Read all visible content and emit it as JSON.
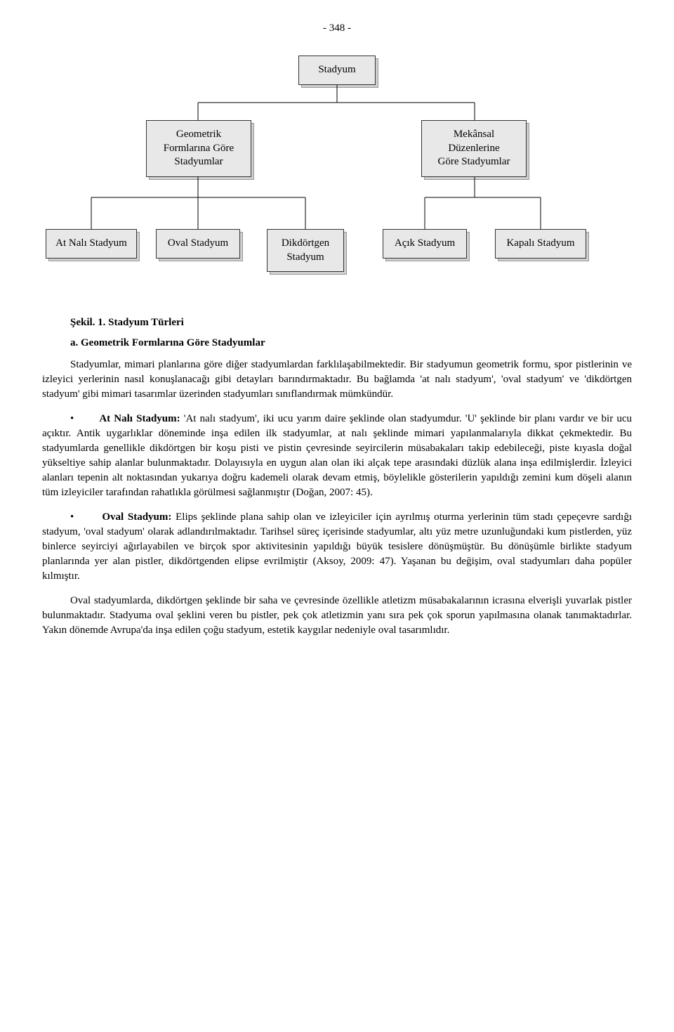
{
  "pageNumber": "- 348 -",
  "chart": {
    "type": "tree",
    "node_bg": "#e8e8e8",
    "node_border": "#333333",
    "shadow_bg": "#d0d0d0",
    "line_color": "#000000",
    "root": "Stadyum",
    "level2": [
      "Geometrik\nFormlarına Göre\nStadyumlar",
      "Mekânsal\nDüzenlerine\nGöre Stadyumlar"
    ],
    "level3_left": [
      "At Nalı Stadyum",
      "Oval Stadyum",
      "Dikdörtgen\nStadyum"
    ],
    "level3_right": [
      "Açık Stadyum",
      "Kapalı Stadyum"
    ]
  },
  "figureCaption": "Şekil. 1. Stadyum Türleri",
  "sectionHead": "a. Geometrik Formlarına Göre Stadyumlar",
  "para1": "Stadyumlar, mimari planlarına göre diğer stadyumlardan farklılaşabilmektedir. Bir stadyumun geometrik formu, spor pistlerinin ve izleyici yerlerinin nasıl konuşlanacağı gibi detayları barındırmaktadır. Bu bağlamda 'at nalı stadyum', 'oval stadyum' ve 'dikdörtgen stadyum' gibi mimari tasarımlar üzerinden stadyumları sınıflandırmak mümkündür.",
  "bullet1Lead": "At Nalı Stadyum:",
  "bullet1Body": " 'At nalı stadyum', iki ucu yarım daire şeklinde olan stadyumdur. 'U' şeklinde bir planı vardır ve bir ucu açıktır. Antik uygarlıklar döneminde inşa edilen ilk stadyumlar, at nalı şeklinde mimari yapılanmalarıyla dikkat çekmektedir. Bu stadyumlarda genellikle dikdörtgen bir koşu pisti ve pistin çevresinde seyircilerin müsabakaları takip edebileceği, piste kıyasla doğal yükseltiye sahip alanlar bulunmaktadır. Dolayısıyla en uygun alan olan iki alçak tepe arasındaki düzlük alana inşa edilmişlerdir. İzleyici alanları tepenin alt noktasından yukarıya doğru kademeli olarak devam etmiş, böylelikle gösterilerin yapıldığı zemini kum döşeli alanın tüm izleyiciler tarafından rahatlıkla görülmesi sağlanmıştır (Doğan, 2007: 45).",
  "bullet2Lead": "Oval Stadyum:",
  "bullet2Body": " Elips şeklinde plana sahip olan ve izleyiciler için ayrılmış oturma yerlerinin tüm stadı çepeçevre sardığı stadyum, 'oval stadyum' olarak adlandırılmaktadır. Tarihsel süreç içerisinde stadyumlar, altı yüz metre uzunluğundaki kum pistlerden, yüz binlerce seyirciyi ağırlayabilen ve birçok spor aktivitesinin yapıldığı büyük tesislere dönüşmüştür. Bu dönüşümle birlikte stadyum planlarında yer alan pistler, dikdörtgenden elipse evrilmiştir (Aksoy, 2009: 47). Yaşanan bu değişim, oval stadyumları daha popüler kılmıştır.",
  "para2": "Oval stadyumlarda, dikdörtgen şeklinde bir saha ve çevresinde özellikle atletizm müsabakalarının icrasına elverişli yuvarlak pistler bulunmaktadır. Stadyuma oval şeklini veren bu pistler, pek çok atletizmin yanı sıra pek çok sporun yapılmasına olanak tanımaktadırlar. Yakın dönemde Avrupa'da inşa edilen çoğu stadyum, estetik kaygılar nedeniyle oval tasarımlıdır."
}
